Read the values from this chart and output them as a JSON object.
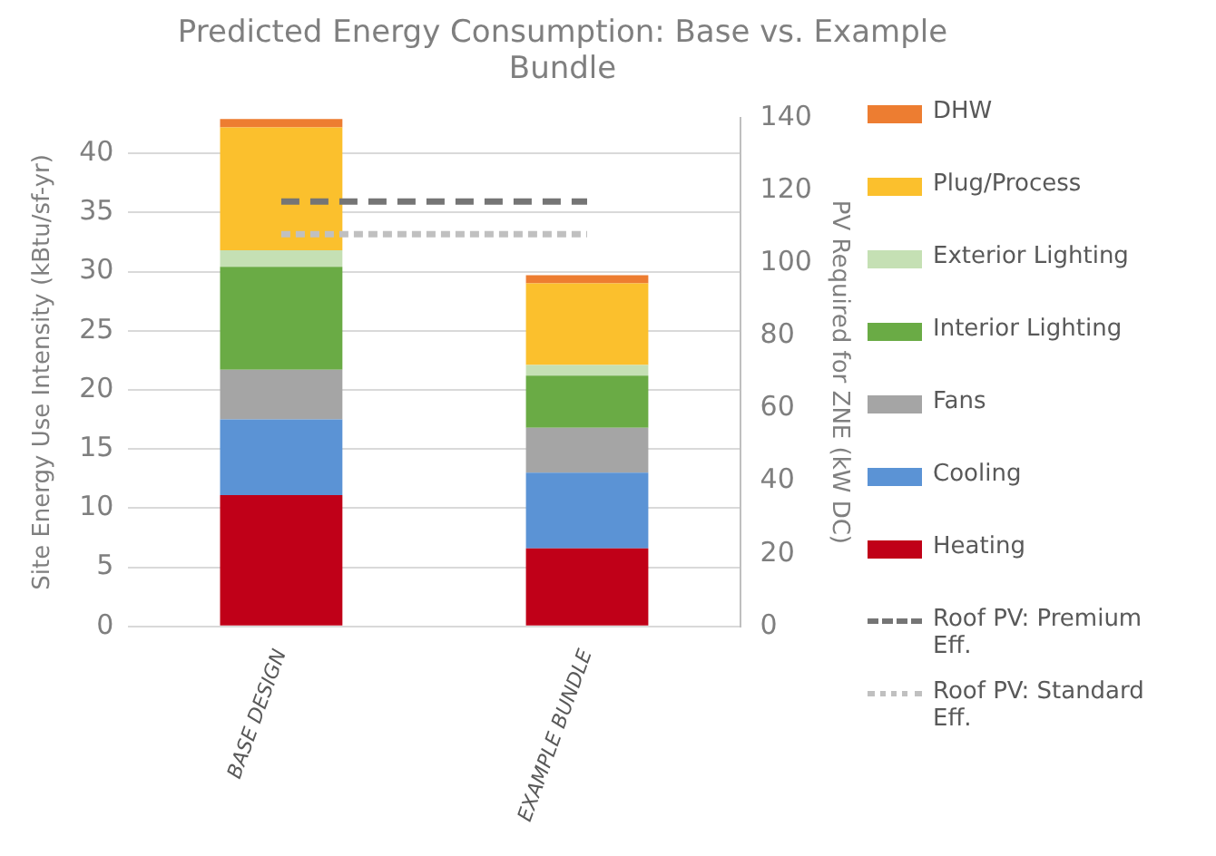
{
  "chart_data": {
    "type": "bar",
    "title": "Predicted Energy Consumption: Base vs. Example Bundle",
    "ylabel": "Site Energy Use Intensity (kBtu/sf-yr)",
    "y2label": "PV Required for ZNE (kW DC)",
    "categories": [
      "BASE DESIGN",
      "EXAMPLE BUNDLE"
    ],
    "stacked": true,
    "series": [
      {
        "name": "Heating",
        "color": "#c00018",
        "values": [
          11.1,
          6.6
        ]
      },
      {
        "name": "Cooling",
        "color": "#5b93d5",
        "values": [
          6.4,
          6.4
        ]
      },
      {
        "name": "Fans",
        "color": "#a5a5a5",
        "values": [
          4.2,
          3.8
        ]
      },
      {
        "name": "Interior Lighting",
        "color": "#6aab45",
        "values": [
          8.7,
          4.4
        ]
      },
      {
        "name": "Exterior Lighting",
        "color": "#c5e0b4",
        "values": [
          1.4,
          0.9
        ]
      },
      {
        "name": "Plug/Process",
        "color": "#fbc02d",
        "values": [
          10.4,
          6.9
        ]
      },
      {
        "name": "DHW",
        "color": "#ed7d31",
        "values": [
          0.7,
          0.7
        ]
      },
      {
        "name": "Roof PV: Premium Eff.",
        "type": "line",
        "axis": "y2",
        "line_style": "dashed",
        "color": "#757575",
        "values": [
          117,
          117
        ]
      },
      {
        "name": "Roof PV: Standard Eff.",
        "type": "line",
        "axis": "y2",
        "line_style": "dotted",
        "color": "#c0c0c0",
        "values": [
          108,
          108
        ]
      }
    ],
    "ylim": [
      0,
      43
    ],
    "yticks": [
      0,
      5,
      10,
      15,
      20,
      25,
      30,
      35,
      40
    ],
    "y2lim": [
      0,
      140
    ],
    "y2ticks": [
      0,
      20,
      40,
      60,
      80,
      100,
      120,
      140
    ],
    "grid": "y",
    "legend": "right",
    "marker": "none"
  }
}
